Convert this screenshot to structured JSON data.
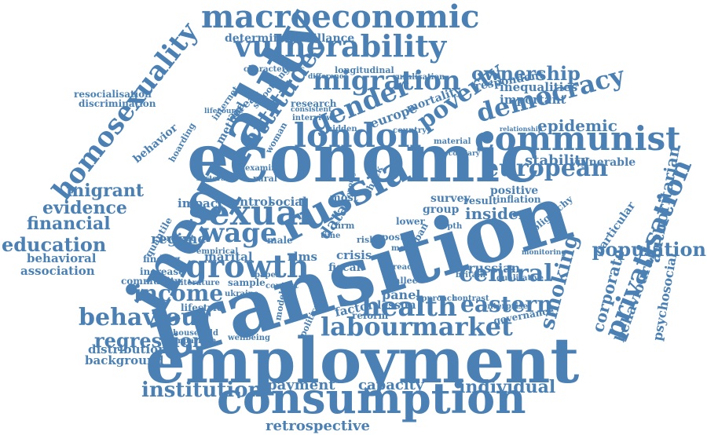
{
  "color": "#4a80b3",
  "words": [
    "transition",
    "employment",
    "economic",
    "inequality",
    "consumption",
    "macroeconomic",
    "vulnerability",
    "russia",
    "sexual",
    "london",
    "communist",
    "growth",
    "privatisation",
    "homosexuality",
    "migration",
    "democracy",
    "gender",
    "poverty",
    "attitude",
    "european",
    "health",
    "labour",
    "market",
    "behaviour",
    "central",
    "eastern",
    "income",
    "wage",
    "population",
    "ownership",
    "institution",
    "regression",
    "education",
    "smoking",
    "individual",
    "financial",
    "evidence",
    "migrant",
    "epidemic",
    "stability",
    "payment",
    "capacity",
    "retrospective",
    "insider",
    "authoritarian",
    "corporate",
    "behavioural",
    "psychosocial",
    "behavioral",
    "association",
    "distribution",
    "background",
    "surveillance",
    "determinant",
    "respondent",
    "inequalities",
    "important",
    "regime",
    "control",
    "social",
    "impact",
    "data",
    "panel",
    "lesson",
    "factor",
    "fiscal",
    "crisis",
    "rlms",
    "survey",
    "group",
    "result",
    "inflation",
    "positive",
    "vulnerable",
    "oligarchy",
    "particular",
    "russian",
    "qualitative",
    "mortality",
    "research",
    "europe",
    "method",
    "arrear",
    "internet",
    "behavior",
    "quantile",
    "project",
    "finding",
    "marital",
    "community",
    "increase",
    "sample",
    "lifestyle",
    "household",
    "comparison",
    "wellbeing",
    "political",
    "reform",
    "model",
    "lower",
    "urban",
    "post",
    "firm",
    "time",
    "shock",
    "male",
    "paper",
    "empirical",
    "literature",
    "contact",
    "ukraine",
    "country",
    "hidden",
    "material",
    "secondary",
    "governance",
    "enterprise",
    "britain",
    "depth",
    "longitudinal",
    "characteristic",
    "difference",
    "ruralisation",
    "resocialisation",
    "discrimination",
    "lifecourse",
    "hoarding",
    "smoothing",
    "woman",
    "interview",
    "consistent",
    "examine",
    "rural",
    "sectoral",
    "economy",
    "reach",
    "sallee",
    "approach",
    "contrast",
    "monitoring",
    "relationship",
    "most",
    "risk",
    "more"
  ]
}
